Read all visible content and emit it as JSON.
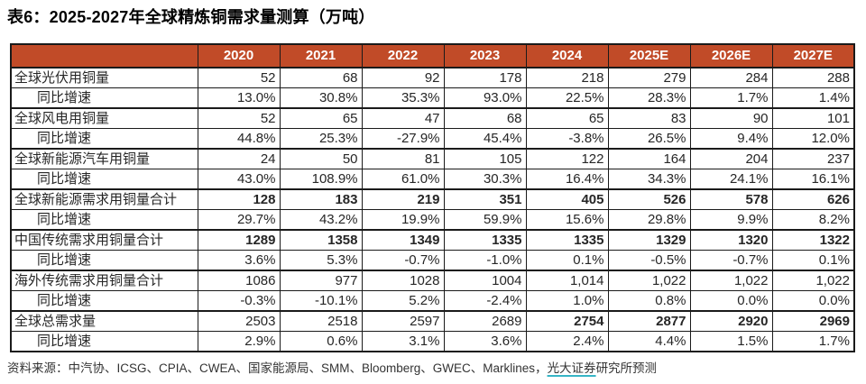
{
  "title": "表6：2025-2027年全球精炼铜需求量测算（万吨）",
  "colors": {
    "header_bg": "#C14B28",
    "header_text": "#FFFFFF",
    "link_underline": "#36B5C6"
  },
  "table": {
    "corner_label": "",
    "columns": [
      "2020",
      "2021",
      "2022",
      "2023",
      "2024",
      "2025E",
      "2026E",
      "2027E"
    ],
    "rows": [
      {
        "label": "全球光伏用铜量",
        "indent": false,
        "group_start": true,
        "emphasis": "none",
        "values": [
          "52",
          "68",
          "92",
          "178",
          "218",
          "279",
          "284",
          "288"
        ]
      },
      {
        "label": "同比增速",
        "indent": true,
        "group_start": false,
        "emphasis": "none",
        "values": [
          "13.0%",
          "30.8%",
          "35.3%",
          "93.0%",
          "22.5%",
          "28.3%",
          "1.7%",
          "1.4%"
        ]
      },
      {
        "label": "全球风电用铜量",
        "indent": false,
        "group_start": true,
        "emphasis": "none",
        "values": [
          "52",
          "65",
          "47",
          "68",
          "65",
          "83",
          "90",
          "101"
        ]
      },
      {
        "label": "同比增速",
        "indent": true,
        "group_start": false,
        "emphasis": "none",
        "values": [
          "44.8%",
          "25.3%",
          "-27.9%",
          "45.4%",
          "-3.8%",
          "26.5%",
          "9.4%",
          "12.0%"
        ]
      },
      {
        "label": "全球新能源汽车用铜量",
        "indent": false,
        "group_start": true,
        "emphasis": "none",
        "values": [
          "24",
          "50",
          "81",
          "105",
          "122",
          "164",
          "204",
          "237"
        ]
      },
      {
        "label": "同比增速",
        "indent": true,
        "group_start": false,
        "emphasis": "none",
        "values": [
          "43.0%",
          "108.9%",
          "61.0%",
          "30.3%",
          "16.4%",
          "34.3%",
          "24.1%",
          "16.1%"
        ]
      },
      {
        "label": "全球新能源需求用铜量合计",
        "indent": false,
        "group_start": true,
        "emphasis": "all",
        "values": [
          "128",
          "183",
          "219",
          "351",
          "405",
          "526",
          "578",
          "626"
        ]
      },
      {
        "label": "同比增速",
        "indent": true,
        "group_start": false,
        "emphasis": "none",
        "values": [
          "29.7%",
          "43.2%",
          "19.9%",
          "59.9%",
          "15.6%",
          "29.8%",
          "9.9%",
          "8.2%"
        ]
      },
      {
        "label": "中国传统需求用铜量合计",
        "indent": false,
        "group_start": true,
        "emphasis": "all",
        "values": [
          "1289",
          "1358",
          "1349",
          "1335",
          "1335",
          "1329",
          "1320",
          "1322"
        ]
      },
      {
        "label": "同比增速",
        "indent": true,
        "group_start": false,
        "emphasis": "none",
        "values": [
          "3.6%",
          "5.3%",
          "-0.7%",
          "-1.0%",
          "0.1%",
          "-0.5%",
          "-0.7%",
          "0.1%"
        ]
      },
      {
        "label": "海外传统需求用铜量合计",
        "indent": false,
        "group_start": true,
        "emphasis": "none",
        "values": [
          "1086",
          "977",
          "1028",
          "1004",
          "1,014",
          "1,022",
          "1,022",
          "1,022"
        ]
      },
      {
        "label": "同比增速",
        "indent": true,
        "group_start": false,
        "emphasis": "none",
        "values": [
          "-0.3%",
          "-10.1%",
          "5.2%",
          "-2.4%",
          "1.0%",
          "0.8%",
          "0.0%",
          "0.0%"
        ]
      },
      {
        "label": "全球总需求量",
        "indent": false,
        "group_start": true,
        "emphasis": "last4",
        "values": [
          "2503",
          "2518",
          "2597",
          "2689",
          "2754",
          "2877",
          "2920",
          "2969"
        ]
      },
      {
        "label": "同比增速",
        "indent": true,
        "group_start": false,
        "emphasis": "none",
        "values": [
          "2.9%",
          "0.6%",
          "3.1%",
          "3.6%",
          "2.4%",
          "4.4%",
          "1.5%",
          "1.7%"
        ]
      }
    ]
  },
  "footer": {
    "prefix": "资料来源：中汽协、ICSG、CPIA、CWEA、国家能源局、SMM、Bloomberg、GWEC、Marklines，",
    "link_text": "光大证券",
    "suffix": "研究所预测"
  }
}
